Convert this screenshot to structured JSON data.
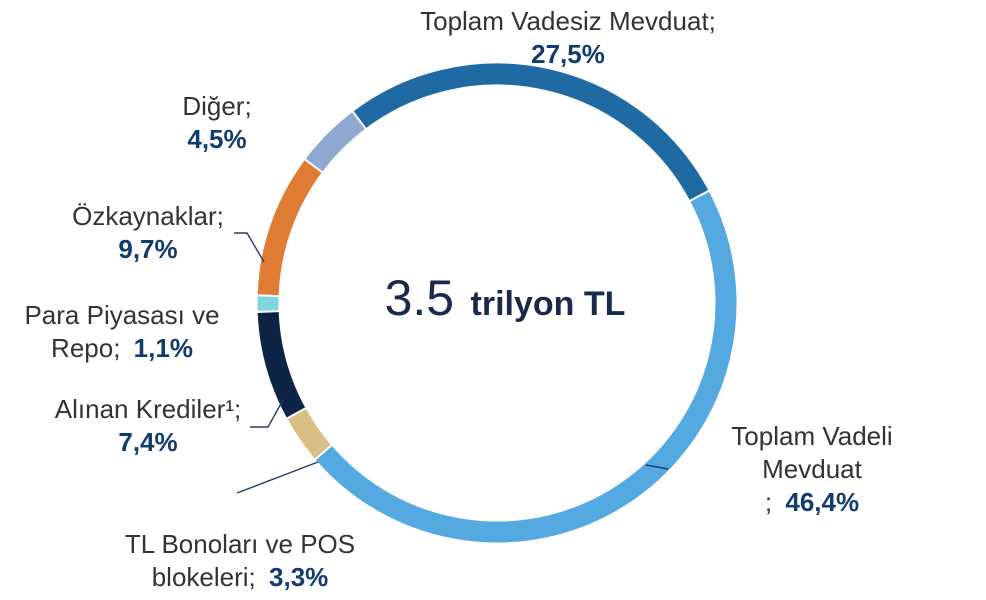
{
  "chart_data": {
    "type": "pie",
    "center_value": "3.5",
    "center_unit": "trilyon TL",
    "slices": [
      {
        "label_lines": [
          "Toplam Vadesiz Mevduat;"
        ],
        "value_text": "27,5%",
        "value": 27.5,
        "color": "#1f6aa3"
      },
      {
        "label_lines": [
          "Toplam Vadeli",
          "Mevduat"
        ],
        "value_prefix": ";",
        "value_text": "46,4%",
        "value": 46.4,
        "color": "#54a9e0"
      },
      {
        "label_lines": [
          "TL Bonoları ve POS",
          "blokeleri;"
        ],
        "value_text": "3,3%",
        "value": 3.3,
        "color": "#d9bf85"
      },
      {
        "label_lines": [
          "Alınan Krediler¹;"
        ],
        "value_text": "7,4%",
        "value": 7.4,
        "color": "#0e2447"
      },
      {
        "label_lines": [
          "Para Piyasası ve",
          "Repo;"
        ],
        "value_text": "1,1%",
        "value": 1.1,
        "color": "#7fd6df"
      },
      {
        "label_lines": [
          "Özkaynaklar;"
        ],
        "value_text": "9,7%",
        "value": 9.7,
        "color": "#e07b33"
      },
      {
        "label_lines": [
          "Diğer;"
        ],
        "value_text": "4,5%",
        "value": 4.5,
        "color": "#8fa8d2"
      }
    ]
  }
}
